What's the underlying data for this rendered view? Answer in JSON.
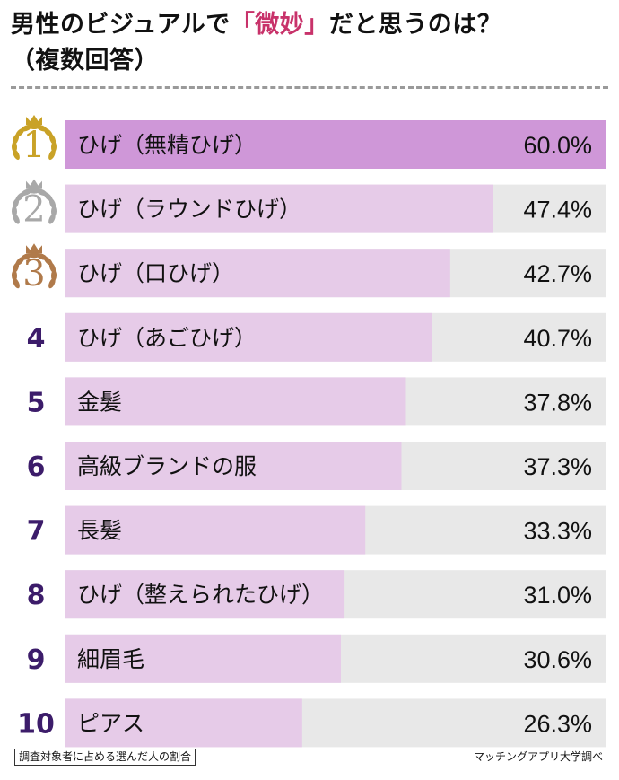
{
  "title": {
    "line1_before": "男性のビジュアルで",
    "line1_highlight": "「微妙」",
    "line1_after": "だと思うのは？",
    "line2": "（複数回答）"
  },
  "colors": {
    "bar_top": "#cf97d8",
    "bar_other": "#e6cbe8",
    "track": "#e8e8e8",
    "rank_text": "#3c1c6a",
    "highlight": "#c8326a",
    "gold": "#c9a227",
    "silver": "#a8a8a8",
    "bronze": "#b07a4a"
  },
  "chart_data": {
    "type": "bar",
    "orientation": "horizontal",
    "title": "男性のビジュアルで「微妙」だと思うのは？（複数回答）",
    "unit": "%",
    "xlim": [
      0,
      60
    ],
    "ranks": [
      "1",
      "2",
      "3",
      "4",
      "5",
      "6",
      "7",
      "8",
      "9",
      "10"
    ],
    "categories": [
      "ひげ（無精ひげ）",
      "ひげ（ラウンドひげ）",
      "ひげ（口ひげ）",
      "ひげ（あごひげ）",
      "金髪",
      "高級ブランドの服",
      "長髪",
      "ひげ（整えられたひげ）",
      "細眉毛",
      "ピアス"
    ],
    "values": [
      60.0,
      47.4,
      42.7,
      40.7,
      37.8,
      37.3,
      33.3,
      31.0,
      30.6,
      26.3
    ],
    "value_labels": [
      "60.0%",
      "47.4%",
      "42.7%",
      "40.7%",
      "37.8%",
      "37.3%",
      "33.3%",
      "31.0%",
      "30.6%",
      "26.3%"
    ]
  },
  "footer": {
    "note": "調査対象者に占める選んだ人の割合",
    "source": "マッチングアプリ大学調べ"
  }
}
